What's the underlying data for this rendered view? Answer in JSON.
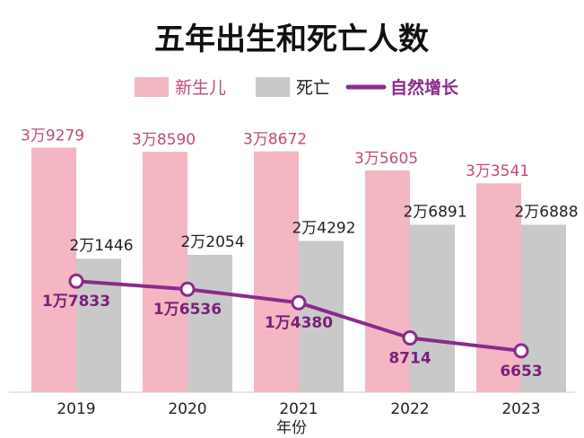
{
  "chart_data": {
    "type": "bar",
    "title": "五年出生和死亡人数",
    "xlabel": "年份",
    "ylabel": "",
    "categories": [
      "2019",
      "2020",
      "2021",
      "2022",
      "2023"
    ],
    "ylim": [
      0,
      42000
    ],
    "series": [
      {
        "name": "新生儿",
        "type": "bar",
        "color": "#f4b6c2",
        "values": [
          39279,
          38590,
          38672,
          35605,
          33541
        ],
        "labels": [
          "3万9279",
          "3万8590",
          "3万8672",
          "3万5605",
          "3万3541"
        ]
      },
      {
        "name": "死亡",
        "type": "bar",
        "color": "#c9c9c9",
        "values": [
          21446,
          22054,
          24292,
          26891,
          26888
        ],
        "labels": [
          "2万1446",
          "2万2054",
          "2万4292",
          "2万6891",
          "2万6888"
        ]
      },
      {
        "name": "自然增长",
        "type": "line",
        "color": "#8b2a8b",
        "values": [
          17833,
          16536,
          14380,
          8714,
          6653
        ],
        "labels": [
          "1万7833",
          "1万6536",
          "1万4380",
          "8714",
          "6653"
        ]
      }
    ],
    "legend_position": "top",
    "grid": false
  }
}
